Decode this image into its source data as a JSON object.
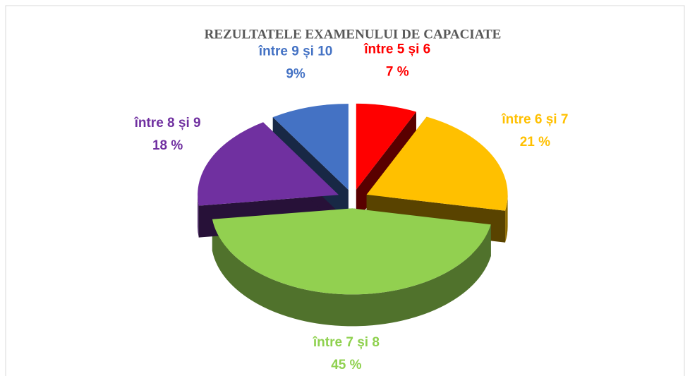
{
  "chart_data": {
    "type": "pie3d",
    "title": "REZULTATELE EXAMENULUI DE CAPACIATE",
    "categories": [
      "între 5 și 6",
      "între 6 și 7",
      "între 7 și 8",
      "între 8 și 9",
      "între 9 și 10"
    ],
    "values": [
      7,
      21,
      45,
      18,
      9
    ],
    "value_labels": [
      "7 %",
      "21 %",
      "45 %",
      "18 %",
      "9%"
    ],
    "colors": [
      "#ff0000",
      "#ffc000",
      "#92d050",
      "#7030a0",
      "#4472c4"
    ]
  }
}
